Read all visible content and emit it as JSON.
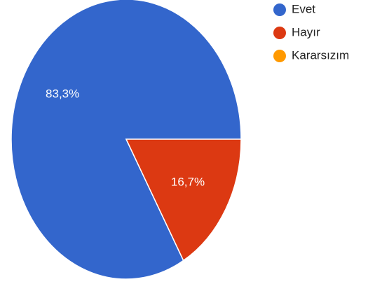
{
  "chart_data": {
    "type": "pie",
    "slices": [
      {
        "label": "Evet",
        "value": 83.3,
        "display": "83,3%",
        "color": "#3366cc"
      },
      {
        "label": "Hayır",
        "value": 16.7,
        "display": "16,7%",
        "color": "#dc3912"
      },
      {
        "label": "Kararsızım",
        "value": 0,
        "display": "",
        "color": "#ff9900"
      }
    ],
    "start_angle_deg": 0,
    "direction": "counterclockwise",
    "legend_position": "right"
  }
}
